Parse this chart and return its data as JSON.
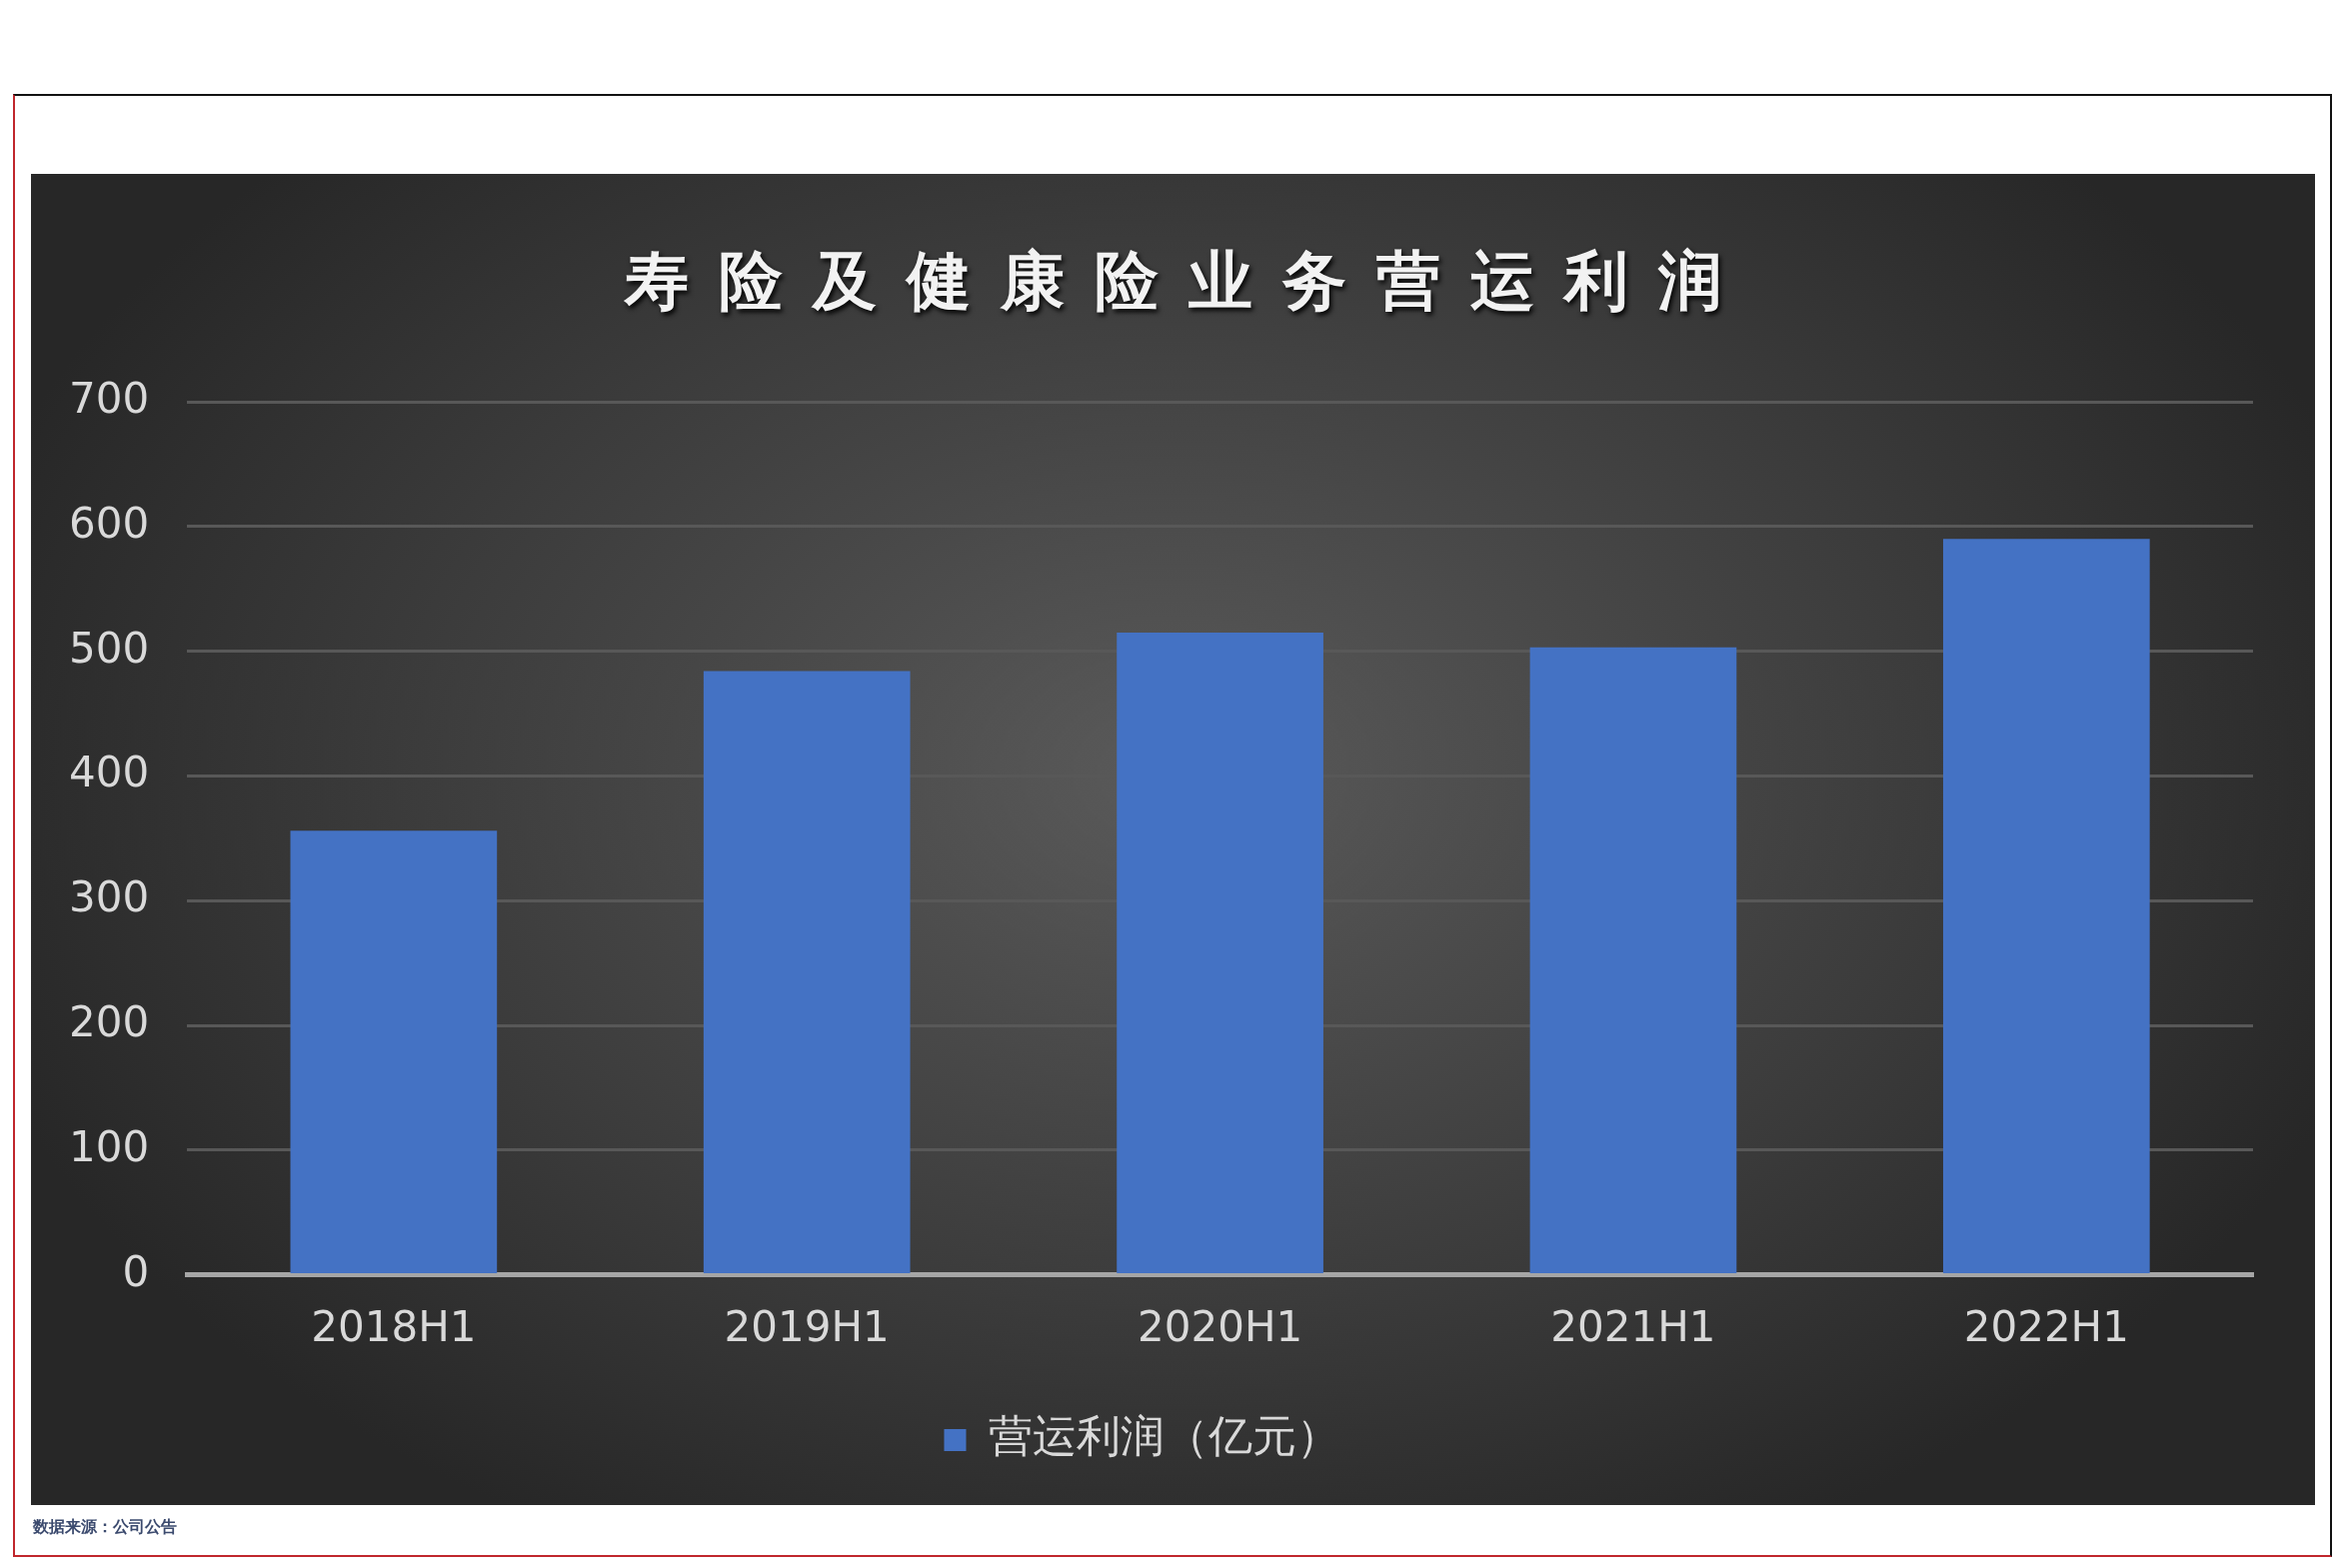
{
  "chart_data": {
    "type": "bar",
    "title": "寿险及健康险业务营运利润",
    "categories": [
      "2018H1",
      "2019H1",
      "2020H1",
      "2021H1",
      "2022H1"
    ],
    "series": [
      {
        "name": "营运利润（亿元）",
        "color": "#4472c4",
        "values": [
          356,
          484,
          515,
          503,
          590
        ]
      }
    ],
    "ylim": [
      0,
      700
    ],
    "yticks": [
      0,
      100,
      200,
      300,
      400,
      500,
      600,
      700
    ],
    "grid": "y",
    "legend": "bottom",
    "annotations": [
      "数据来源：公司公告"
    ]
  }
}
